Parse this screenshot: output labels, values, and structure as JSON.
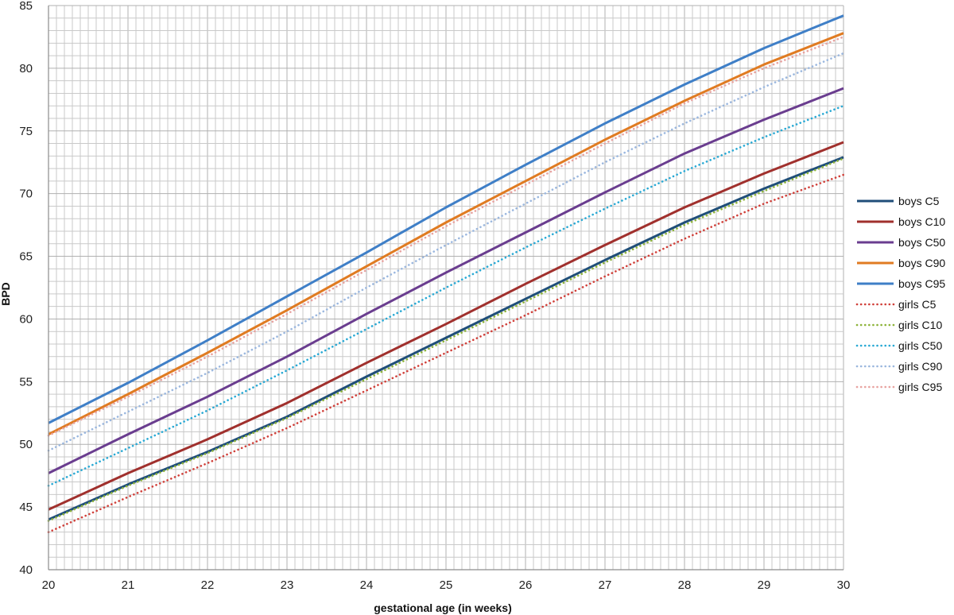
{
  "chart_data": {
    "type": "line",
    "title": "",
    "xlabel": "gestational age (in weeks)",
    "ylabel": "BPD",
    "xlim": [
      20,
      30
    ],
    "ylim": [
      40,
      85
    ],
    "x_ticks": [
      "20",
      "21",
      "22",
      "23",
      "24",
      "25",
      "26",
      "27",
      "28",
      "29",
      "30"
    ],
    "y_ticks": [
      "40",
      "45",
      "50",
      "55",
      "60",
      "65",
      "70",
      "75",
      "80",
      "85"
    ],
    "minor_grid_step_x": 0.1,
    "minor_grid_step_y": 1,
    "grid": true,
    "legend_position": "right",
    "x": [
      20,
      21,
      22,
      23,
      24,
      25,
      26,
      27,
      28,
      29,
      30
    ],
    "series": [
      {
        "name": "boys C5",
        "style": "solid",
        "color": "#1F4E79",
        "values": [
          44.0,
          46.8,
          49.4,
          52.2,
          55.4,
          58.5,
          61.6,
          64.7,
          67.7,
          70.4,
          72.9
        ]
      },
      {
        "name": "boys C10",
        "style": "solid",
        "color": "#A0302D",
        "values": [
          44.8,
          47.7,
          50.4,
          53.3,
          56.5,
          59.6,
          62.8,
          65.9,
          68.9,
          71.6,
          74.1
        ]
      },
      {
        "name": "boys C50",
        "style": "solid",
        "color": "#6A3D8F",
        "values": [
          47.7,
          50.8,
          53.8,
          57.0,
          60.4,
          63.7,
          66.9,
          70.1,
          73.2,
          75.9,
          78.4
        ]
      },
      {
        "name": "boys C90",
        "style": "solid",
        "color": "#E07B22",
        "values": [
          50.8,
          54.0,
          57.3,
          60.7,
          64.2,
          67.7,
          71.0,
          74.3,
          77.4,
          80.3,
          82.8
        ]
      },
      {
        "name": "boys C95",
        "style": "solid",
        "color": "#3F7FC7",
        "values": [
          51.7,
          54.9,
          58.3,
          61.8,
          65.3,
          68.9,
          72.3,
          75.6,
          78.7,
          81.6,
          84.2
        ]
      },
      {
        "name": "girls C5",
        "style": "dotted",
        "color": "#D0403A",
        "values": [
          43.0,
          45.8,
          48.5,
          51.3,
          54.3,
          57.3,
          60.3,
          63.4,
          66.4,
          69.2,
          71.5
        ]
      },
      {
        "name": "girls C10",
        "style": "dotted",
        "color": "#8DB33A",
        "values": [
          43.9,
          46.7,
          49.3,
          52.1,
          55.2,
          58.3,
          61.4,
          64.5,
          67.5,
          70.2,
          72.8
        ]
      },
      {
        "name": "girls C50",
        "style": "dotted",
        "color": "#29A9D4",
        "values": [
          46.7,
          49.7,
          52.7,
          55.9,
          59.2,
          62.5,
          65.7,
          68.8,
          71.8,
          74.5,
          77.0
        ]
      },
      {
        "name": "girls C90",
        "style": "dotted",
        "color": "#9BB7DE",
        "values": [
          49.5,
          52.6,
          55.7,
          59.0,
          62.5,
          65.9,
          69.2,
          72.5,
          75.6,
          78.5,
          81.2
        ]
      },
      {
        "name": "girls C95",
        "style": "dotted",
        "color": "#E8A3A0",
        "values": [
          50.7,
          53.8,
          57.0,
          60.4,
          63.9,
          67.4,
          70.7,
          74.0,
          77.2,
          80.0,
          82.5
        ]
      }
    ]
  },
  "colors": {
    "grid_minor": "#c9c9c9",
    "grid_major": "#b0b0b0",
    "axis": "#8c8c8c"
  }
}
